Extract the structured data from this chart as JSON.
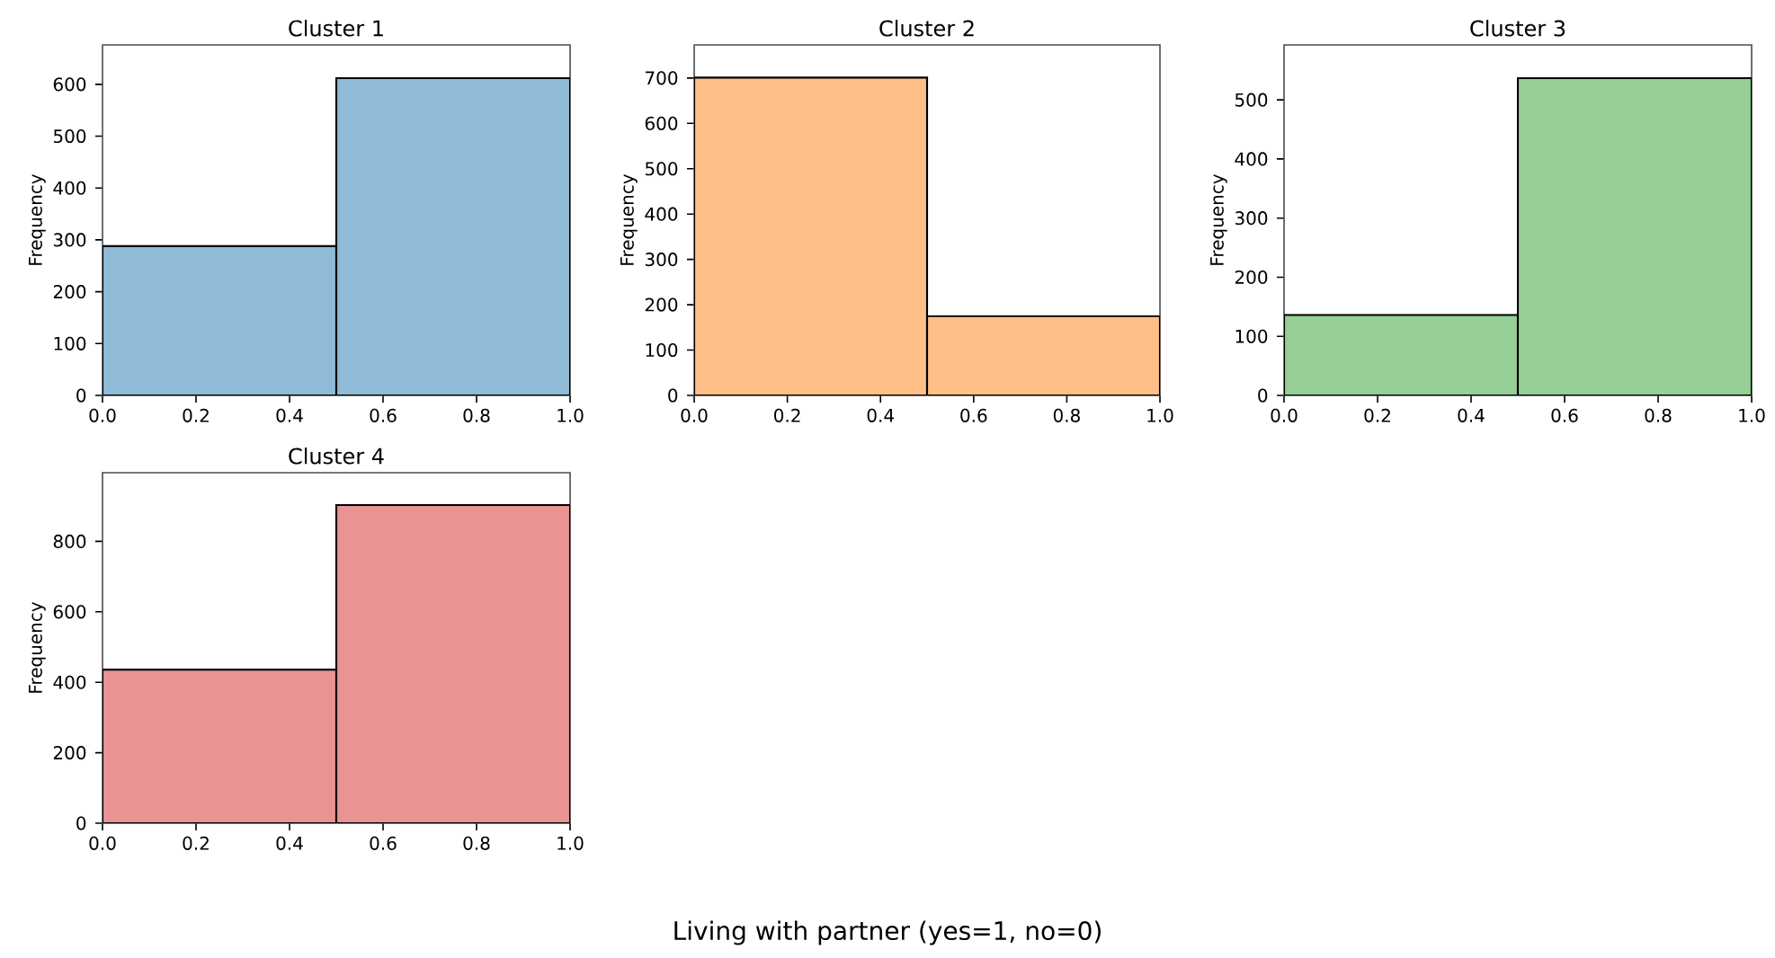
{
  "chart_data": [
    {
      "type": "histogram",
      "title": "Cluster 1",
      "ylabel": "Frequency",
      "bins": [
        0,
        0.5,
        1
      ],
      "values": [
        288,
        612
      ],
      "color": "#8fbbd9",
      "xlim": [
        0,
        1
      ],
      "ylim": [
        0,
        676
      ],
      "xticks": [
        {
          "value": 0,
          "label": "0.0"
        },
        {
          "value": 0.2,
          "label": "0.2"
        },
        {
          "value": 0.4,
          "label": "0.4"
        },
        {
          "value": 0.6,
          "label": "0.6"
        },
        {
          "value": 0.8,
          "label": "0.8"
        },
        {
          "value": 1,
          "label": "1.0"
        }
      ],
      "yticks": [
        0,
        100,
        200,
        300,
        400,
        500,
        600
      ]
    },
    {
      "type": "histogram",
      "title": "Cluster 2",
      "ylabel": "Frequency",
      "bins": [
        0,
        0.5,
        1
      ],
      "values": [
        701,
        175
      ],
      "color": "#ffbf86",
      "xlim": [
        0,
        1
      ],
      "ylim": [
        0,
        773
      ],
      "xticks": [
        {
          "value": 0,
          "label": "0.0"
        },
        {
          "value": 0.2,
          "label": "0.2"
        },
        {
          "value": 0.4,
          "label": "0.4"
        },
        {
          "value": 0.6,
          "label": "0.6"
        },
        {
          "value": 0.8,
          "label": "0.8"
        },
        {
          "value": 1,
          "label": "1.0"
        }
      ],
      "yticks": [
        0,
        100,
        200,
        300,
        400,
        500,
        600,
        700
      ]
    },
    {
      "type": "histogram",
      "title": "Cluster 3",
      "ylabel": "Frequency",
      "bins": [
        0,
        0.5,
        1
      ],
      "values": [
        136,
        537
      ],
      "color": "#95cf95",
      "xlim": [
        0,
        1
      ],
      "ylim": [
        0,
        593
      ],
      "xticks": [
        {
          "value": 0,
          "label": "0.0"
        },
        {
          "value": 0.2,
          "label": "0.2"
        },
        {
          "value": 0.4,
          "label": "0.4"
        },
        {
          "value": 0.6,
          "label": "0.6"
        },
        {
          "value": 0.8,
          "label": "0.8"
        },
        {
          "value": 1,
          "label": "1.0"
        }
      ],
      "yticks": [
        0,
        100,
        200,
        300,
        400,
        500
      ]
    },
    {
      "type": "histogram",
      "title": "Cluster 4",
      "ylabel": "Frequency",
      "xlabel": "Living with partner (yes=1, no=0)",
      "bins": [
        0,
        0.5,
        1
      ],
      "values": [
        436,
        903
      ],
      "color": "#ea9393",
      "xlim": [
        0,
        1
      ],
      "ylim": [
        0,
        995
      ],
      "xticks": [
        {
          "value": 0,
          "label": "0.0"
        },
        {
          "value": 0.2,
          "label": "0.2"
        },
        {
          "value": 0.4,
          "label": "0.4"
        },
        {
          "value": 0.6,
          "label": "0.6"
        },
        {
          "value": 0.8,
          "label": "0.8"
        },
        {
          "value": 1,
          "label": "1.0"
        }
      ],
      "yticks": [
        0,
        200,
        400,
        600,
        800
      ]
    }
  ]
}
